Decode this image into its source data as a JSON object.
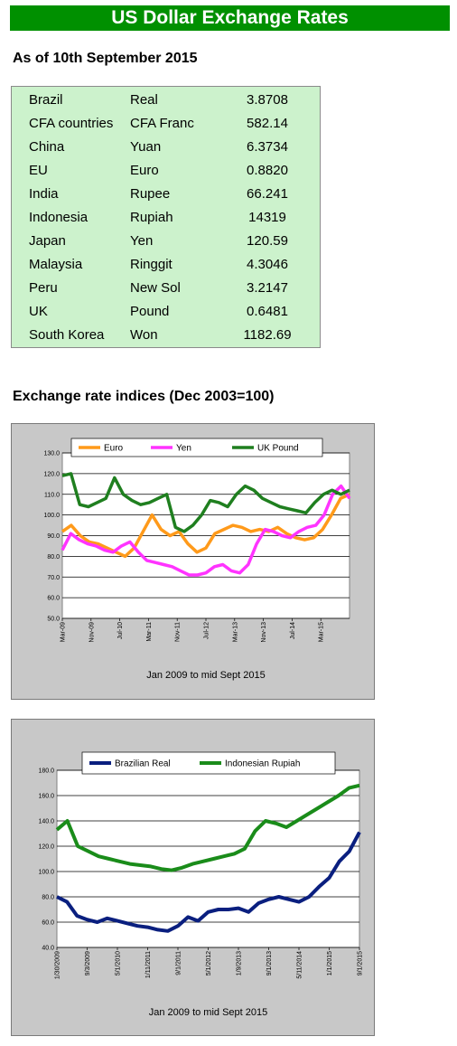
{
  "title": "US Dollar Exchange Rates",
  "as_of": "As of 10th September 2015",
  "rates": [
    {
      "country": "Brazil",
      "currency": "Real",
      "value": "3.8708"
    },
    {
      "country": "CFA countries",
      "currency": "CFA Franc",
      "value": "582.14"
    },
    {
      "country": "China",
      "currency": "Yuan",
      "value": "6.3734"
    },
    {
      "country": "EU",
      "currency": "Euro",
      "value": "0.8820"
    },
    {
      "country": "India",
      "currency": "Rupee",
      "value": "66.241"
    },
    {
      "country": "Indonesia",
      "currency": "Rupiah",
      "value": "14319"
    },
    {
      "country": "Japan",
      "currency": "Yen",
      "value": "120.59"
    },
    {
      "country": "Malaysia",
      "currency": "Ringgit",
      "value": "4.3046"
    },
    {
      "country": "Peru",
      "currency": "New Sol",
      "value": "3.2147"
    },
    {
      "country": "UK",
      "currency": "Pound",
      "value": "0.6481"
    },
    {
      "country": "South Korea",
      "currency": "Won",
      "value": "1182.69"
    }
  ],
  "indices_heading": "Exchange rate indices (Dec 2003=100)",
  "colors": {
    "euro": "#ff9a1a",
    "yen": "#ff33ff",
    "pound": "#1f7f1f",
    "real": "#0a1f7f",
    "rupiah": "#1a8c1a"
  },
  "chart_data": [
    {
      "type": "line",
      "caption": "Jan 2009 to mid Sept 2015",
      "ylim": [
        50,
        130
      ],
      "ytick_labels": [
        "50.0",
        "60.0",
        "70.0",
        "80.0",
        "90.0",
        "100.0",
        "110.0",
        "120.0",
        "130.0"
      ],
      "xtick_labels": [
        "Mar-09",
        "Nov-09",
        "Jul-10",
        "Mar-11",
        "Nov-11",
        "Jul-12",
        "Mar-13",
        "Nov-13",
        "Jul-14",
        "Mar-15"
      ],
      "legend": "top",
      "series": [
        {
          "name": "Euro",
          "values": [
            92,
            95,
            90,
            87,
            86,
            84,
            82,
            80,
            84,
            92,
            100,
            93,
            90,
            92,
            86,
            82,
            84,
            91,
            93,
            95,
            94,
            92,
            93,
            92,
            94,
            91,
            89,
            88,
            89,
            93,
            100,
            108,
            110
          ]
        },
        {
          "name": "Yen",
          "values": [
            83,
            91,
            88,
            86,
            85,
            83,
            82,
            85,
            87,
            82,
            78,
            77,
            76,
            75,
            73,
            71,
            71,
            72,
            75,
            76,
            73,
            72,
            76,
            86,
            93,
            92,
            90,
            89,
            92,
            94,
            95,
            100,
            110,
            114,
            108
          ]
        },
        {
          "name": "UK Pound",
          "values": [
            119,
            120,
            105,
            104,
            106,
            108,
            118,
            110,
            107,
            105,
            106,
            108,
            110,
            94,
            92,
            95,
            100,
            107,
            106,
            104,
            110,
            114,
            112,
            108,
            106,
            104,
            103,
            102,
            101,
            106,
            110,
            112,
            110,
            112
          ]
        }
      ]
    },
    {
      "type": "line",
      "caption": "Jan 2009 to mid Sept 2015",
      "ylim": [
        40,
        180
      ],
      "ytick_labels": [
        "40.0",
        "60.0",
        "80.0",
        "100.0",
        "120.0",
        "140.0",
        "160.0",
        "180.0"
      ],
      "xtick_labels": [
        "1/30/2009",
        "9/3/2009",
        "5/1/2010",
        "1/11/2011",
        "9/1/2011",
        "5/1/2012",
        "1/9/2013",
        "9/1/2013",
        "5/11/2014",
        "1/1/2015",
        "9/1/2015"
      ],
      "legend": "top",
      "series": [
        {
          "name": "Brazilian Real",
          "values": [
            80,
            76,
            65,
            62,
            60,
            63,
            61,
            59,
            57,
            56,
            54,
            53,
            57,
            64,
            61,
            68,
            70,
            70,
            71,
            68,
            75,
            78,
            80,
            78,
            76,
            80,
            88,
            95,
            108,
            116,
            131
          ]
        },
        {
          "name": "Indonesian Rupiah",
          "values": [
            133,
            140,
            120,
            116,
            112,
            110,
            108,
            106,
            105,
            104,
            102,
            101,
            103,
            106,
            108,
            110,
            112,
            114,
            118,
            132,
            140,
            138,
            135,
            140,
            145,
            150,
            155,
            160,
            166,
            168
          ]
        }
      ]
    }
  ]
}
